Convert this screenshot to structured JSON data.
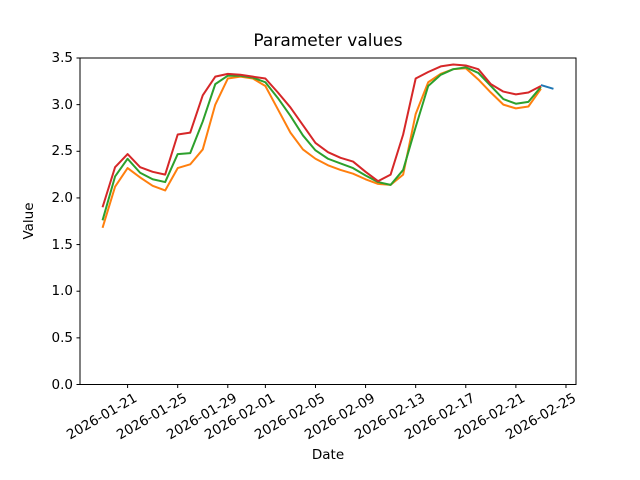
{
  "chart_data": {
    "type": "line",
    "title": "Parameter values",
    "xlabel": "Date",
    "ylabel": "Value",
    "ylim": [
      0.0,
      3.5
    ],
    "ytick_labels": [
      "0.0",
      "0.5",
      "1.0",
      "1.5",
      "2.0",
      "2.5",
      "3.0",
      "3.5"
    ],
    "ytick_values": [
      0.0,
      0.5,
      1.0,
      1.5,
      2.0,
      2.5,
      3.0,
      3.5
    ],
    "xtick_labels": [
      "2026-01-21",
      "2026-01-25",
      "2026-01-29",
      "2026-02-01",
      "2026-02-05",
      "2026-02-09",
      "2026-02-13",
      "2026-02-17",
      "2026-02-21",
      "2026-02-25"
    ],
    "grid": false,
    "legend": "none",
    "x_start_date": "2026-01-19",
    "x_end_date": "2026-02-24",
    "dates": [
      "2026-01-19",
      "2026-01-20",
      "2026-01-21",
      "2026-01-22",
      "2026-01-23",
      "2026-01-24",
      "2026-01-25",
      "2026-01-26",
      "2026-01-27",
      "2026-01-28",
      "2026-01-29",
      "2026-01-30",
      "2026-01-31",
      "2026-02-01",
      "2026-02-02",
      "2026-02-03",
      "2026-02-04",
      "2026-02-05",
      "2026-02-06",
      "2026-02-07",
      "2026-02-08",
      "2026-02-09",
      "2026-02-10",
      "2026-02-11",
      "2026-02-12",
      "2026-02-13",
      "2026-02-14",
      "2026-02-15",
      "2026-02-16",
      "2026-02-17",
      "2026-02-18",
      "2026-02-19",
      "2026-02-20",
      "2026-02-21",
      "2026-02-22",
      "2026-02-23"
    ],
    "series": [
      {
        "name": "forecast-blue",
        "color": "#1f77b4",
        "dates": [
          "2026-02-23",
          "2026-02-24"
        ],
        "values": [
          3.21,
          3.17
        ]
      },
      {
        "name": "parameter-orange",
        "color": "#ff7f0e",
        "dates_ref": "dates",
        "values": [
          1.68,
          2.12,
          2.32,
          2.22,
          2.13,
          2.08,
          2.32,
          2.36,
          2.52,
          3.0,
          3.28,
          3.3,
          3.28,
          3.2,
          2.95,
          2.7,
          2.52,
          2.42,
          2.35,
          2.3,
          2.26,
          2.2,
          2.15,
          2.14,
          2.25,
          2.9,
          3.24,
          3.33,
          3.38,
          3.39,
          3.27,
          3.13,
          3.0,
          2.96,
          2.98,
          3.17
        ]
      },
      {
        "name": "parameter-green",
        "color": "#2ca02c",
        "dates_ref": "dates",
        "values": [
          1.76,
          2.23,
          2.42,
          2.27,
          2.2,
          2.17,
          2.47,
          2.48,
          2.82,
          3.22,
          3.31,
          3.31,
          3.29,
          3.24,
          3.07,
          2.88,
          2.67,
          2.51,
          2.42,
          2.37,
          2.32,
          2.24,
          2.17,
          2.14,
          2.3,
          2.76,
          3.2,
          3.32,
          3.38,
          3.4,
          3.34,
          3.2,
          3.06,
          3.01,
          3.03,
          3.19
        ]
      },
      {
        "name": "parameter-red",
        "color": "#d62728",
        "dates_ref": "dates",
        "values": [
          1.9,
          2.33,
          2.47,
          2.33,
          2.28,
          2.25,
          2.68,
          2.7,
          3.1,
          3.3,
          3.33,
          3.32,
          3.3,
          3.28,
          3.13,
          2.97,
          2.78,
          2.59,
          2.49,
          2.43,
          2.39,
          2.28,
          2.18,
          2.25,
          2.68,
          3.28,
          3.35,
          3.41,
          3.43,
          3.42,
          3.38,
          3.22,
          3.14,
          3.11,
          3.13,
          3.2
        ]
      }
    ],
    "axis_color": "#000000",
    "line_width": 2
  }
}
